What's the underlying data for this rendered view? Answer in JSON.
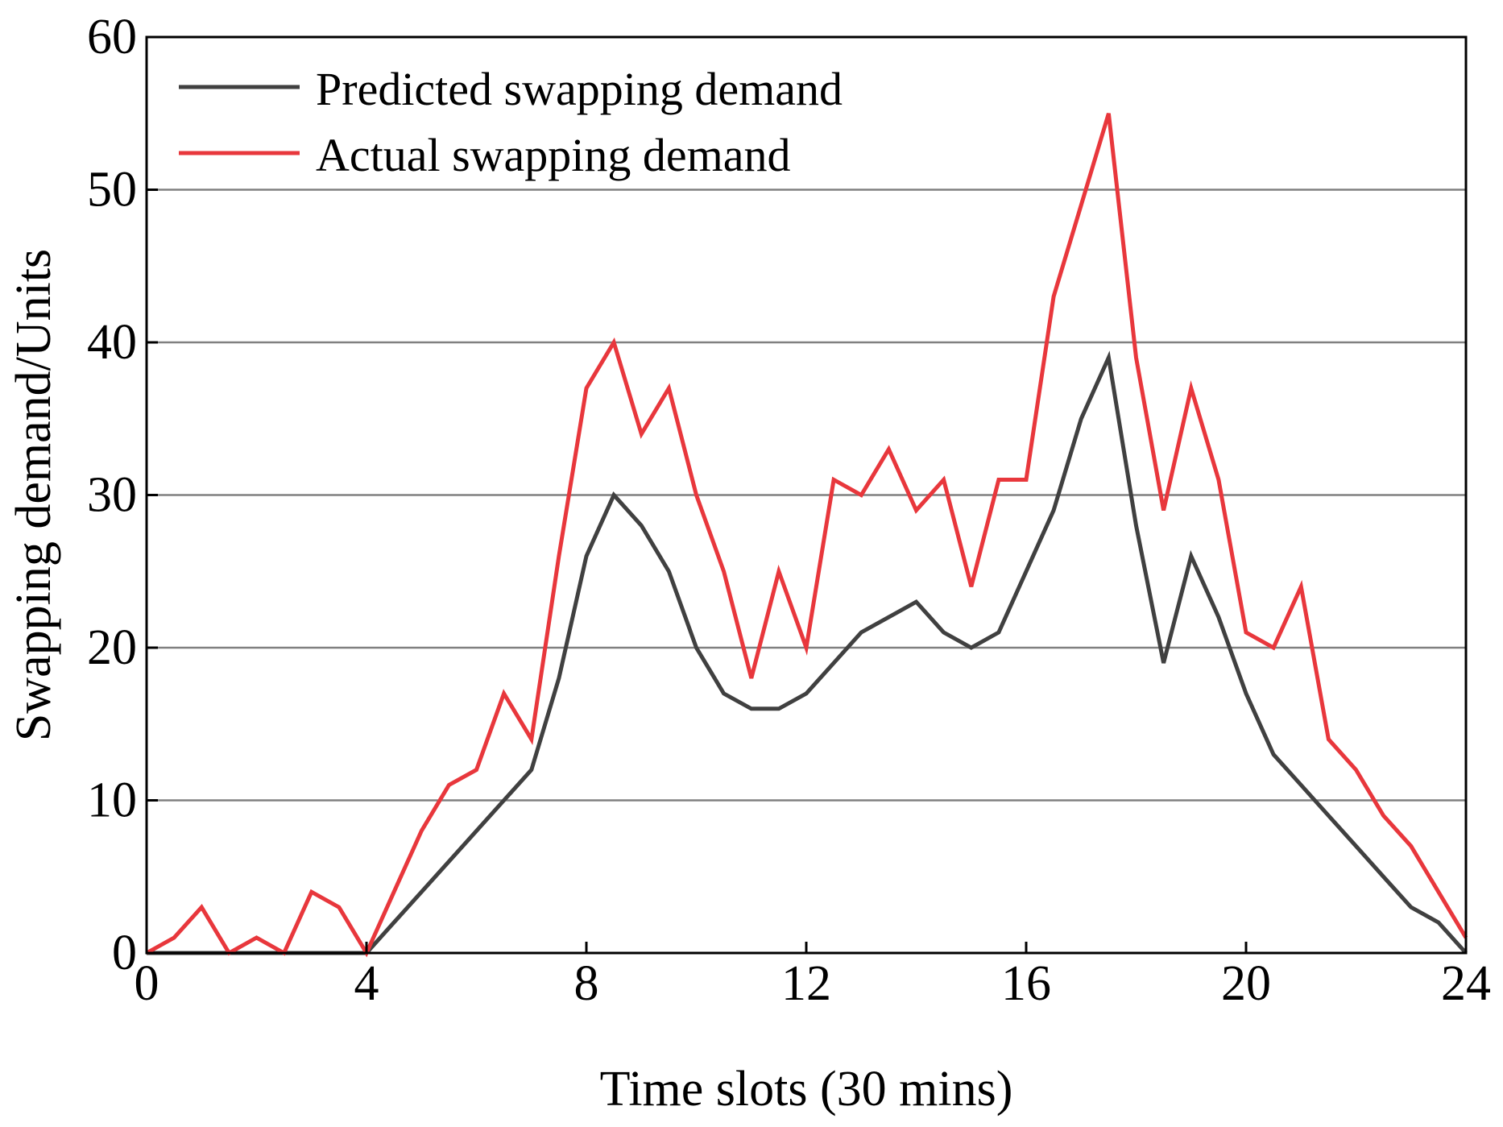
{
  "chart_data": {
    "type": "line",
    "title": "",
    "xlabel": "Time slots (30 mins)",
    "ylabel": "Swapping demand/Units",
    "xlim": [
      0,
      24
    ],
    "ylim": [
      0,
      60
    ],
    "x_ticks": [
      0,
      4,
      8,
      12,
      16,
      20,
      24
    ],
    "x_tick_labels": [
      "0",
      "4",
      "8",
      "12",
      "16",
      "20",
      "24"
    ],
    "y_ticks": [
      0,
      10,
      20,
      30,
      40,
      50,
      60
    ],
    "y_tick_labels": [
      "0",
      "10",
      "20",
      "30",
      "40",
      "50",
      "60"
    ],
    "grid": "horizontal",
    "legend_position": "top-left",
    "x": [
      0,
      0.5,
      1,
      1.5,
      2,
      2.5,
      3,
      3.5,
      4,
      4.5,
      5,
      5.5,
      6,
      6.5,
      7,
      7.5,
      8,
      8.5,
      9,
      9.5,
      10,
      10.5,
      11,
      11.5,
      12,
      12.5,
      13,
      13.5,
      14,
      14.5,
      15,
      15.5,
      16,
      16.5,
      17,
      17.5,
      18,
      18.5,
      19,
      19.5,
      20,
      20.5,
      21,
      21.5,
      22,
      22.5,
      23,
      23.5,
      24
    ],
    "series": [
      {
        "name": "Predicted swapping demand",
        "color": "#404040",
        "values": [
          0,
          0,
          0,
          0,
          0,
          0,
          0,
          0,
          0,
          2,
          4,
          6,
          8,
          10,
          12,
          18,
          26,
          30,
          28,
          25,
          20,
          17,
          16,
          16,
          17,
          19,
          21,
          22,
          23,
          21,
          20,
          21,
          25,
          29,
          35,
          39,
          28,
          19,
          26,
          22,
          17,
          13,
          11,
          9,
          7,
          5,
          3,
          2,
          0
        ]
      },
      {
        "name": "Actual swapping demand",
        "color": "#e8373c",
        "values": [
          0,
          1,
          3,
          0,
          1,
          0,
          4,
          3,
          0,
          4,
          8,
          11,
          12,
          17,
          14,
          26,
          37,
          40,
          34,
          37,
          30,
          25,
          18,
          25,
          20,
          31,
          30,
          33,
          29,
          31,
          24,
          31,
          31,
          43,
          49,
          55,
          39,
          29,
          37,
          31,
          21,
          20,
          24,
          14,
          12,
          9,
          7,
          4,
          1
        ]
      }
    ]
  }
}
